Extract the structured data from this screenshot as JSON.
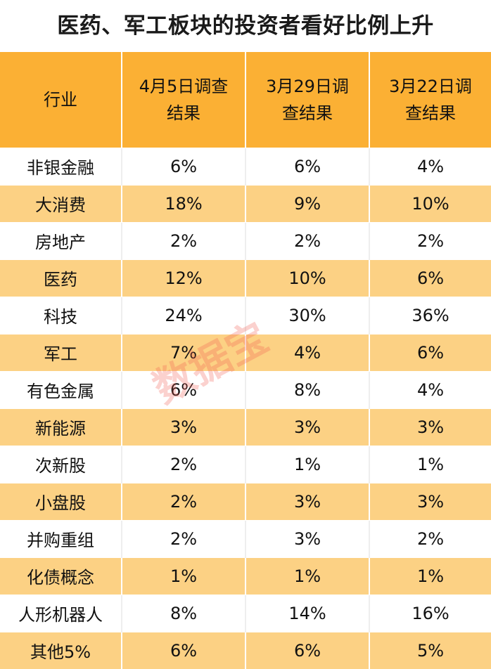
{
  "title": "医药、军工板块的投资者看好比例上升",
  "headers": [
    "行业",
    "4月5日调查结果",
    "3月29日调查结果",
    "3月22日调查结果"
  ],
  "rows": [
    [
      "非银金融",
      "6%",
      "6%",
      "4%"
    ],
    [
      "大消费",
      "18%",
      "9%",
      "10%"
    ],
    [
      "房地产",
      "2%",
      "2%",
      "2%"
    ],
    [
      "医药",
      "12%",
      "10%",
      "6%"
    ],
    [
      "科技",
      "24%",
      "30%",
      "36%"
    ],
    [
      "军工",
      "7%",
      "4%",
      "6%"
    ],
    [
      "有色金属",
      "6%",
      "8%",
      "4%"
    ],
    [
      "新能源",
      "3%",
      "3%",
      "3%"
    ],
    [
      "次新股",
      "2%",
      "1%",
      "1%"
    ],
    [
      "小盘股",
      "2%",
      "3%",
      "3%"
    ],
    [
      "并购重组",
      "2%",
      "3%",
      "2%"
    ],
    [
      "化债概念",
      "1%",
      "1%",
      "1%"
    ],
    [
      "人形机器人",
      "8%",
      "14%",
      "16%"
    ],
    [
      "其他5%",
      "6%",
      "6%",
      "5%"
    ]
  ],
  "watermark": "数据宝",
  "colors": {
    "header_bg": "#fbb034",
    "stripe_bg": "#fcd184",
    "watermark": "#f05a50"
  }
}
